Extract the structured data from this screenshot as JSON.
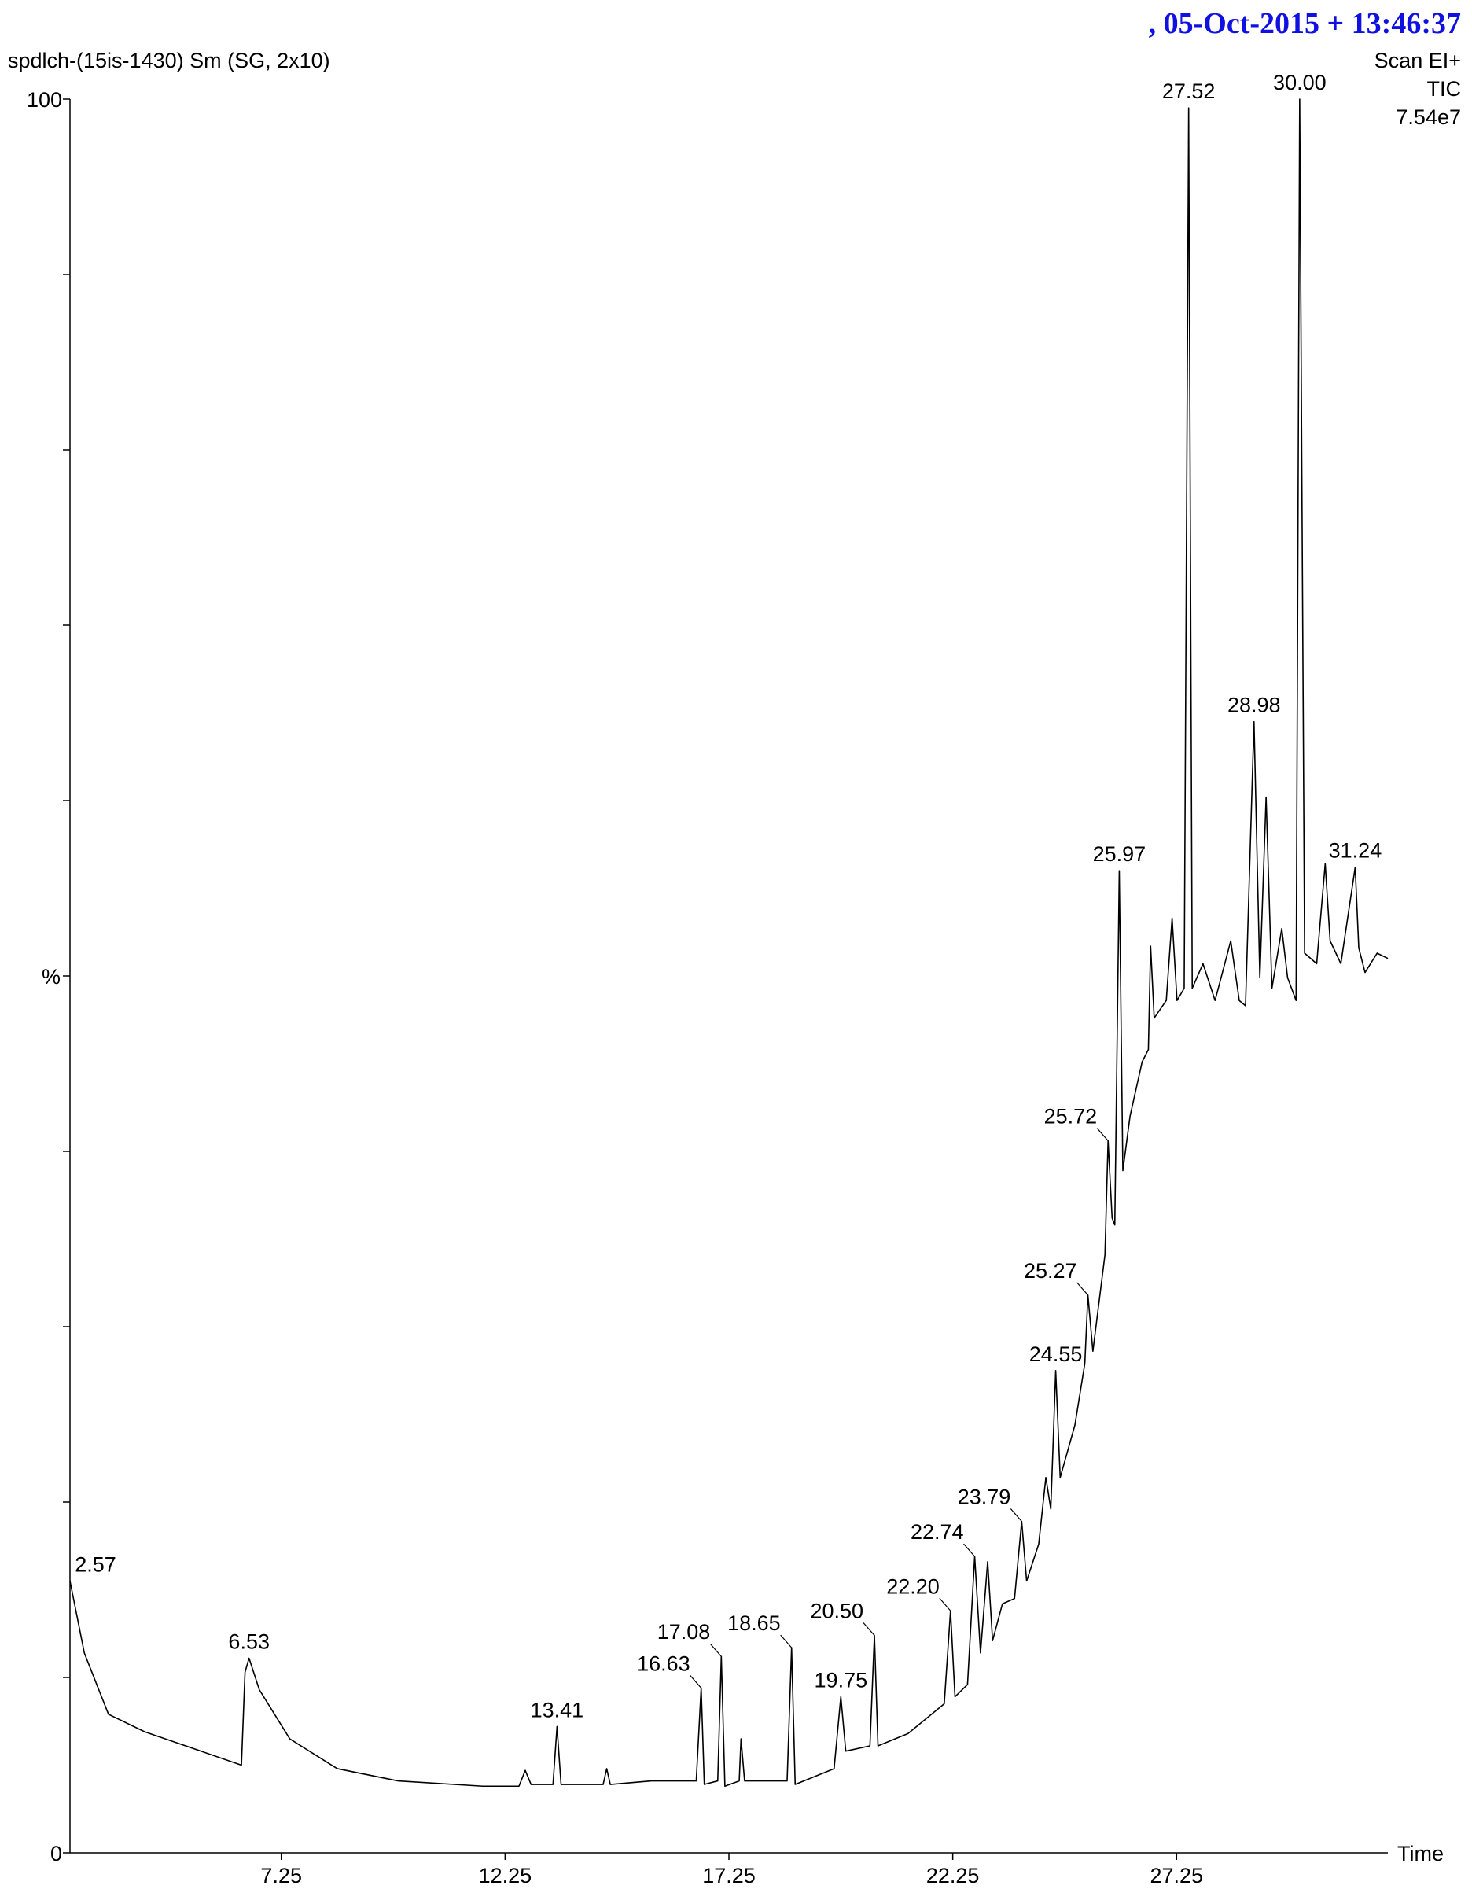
{
  "chart_data": {
    "type": "line",
    "title": "spdlch-(15is-1430) Sm (SG, 2x10)",
    "stamp": ",  05-Oct-2015 + 13:46:37",
    "info": [
      "Scan EI+",
      "TIC",
      "7.54e7"
    ],
    "y_label": "%",
    "x_label": "Time",
    "color": "#000000",
    "xlim": [
      2.53,
      31.97
    ],
    "ylim": [
      0,
      100
    ],
    "xticks": [
      7.25,
      12.25,
      17.25,
      22.25,
      27.25
    ],
    "yticks": [
      0,
      100
    ],
    "yminor_ticks": [
      10,
      20,
      30,
      40,
      50,
      60,
      70,
      80,
      90
    ],
    "x": [
      2.53,
      2.85,
      3.39,
      4.2,
      5.0,
      6.36,
      6.44,
      6.53,
      6.76,
      7.44,
      8.5,
      9.86,
      11.75,
      12.56,
      12.7,
      12.83,
      13.32,
      13.41,
      13.5,
      14.44,
      14.52,
      14.6,
      15.52,
      16.52,
      16.63,
      16.7,
      17.0,
      17.08,
      17.16,
      17.48,
      17.52,
      17.6,
      18.55,
      18.65,
      18.73,
      19.6,
      19.75,
      19.86,
      20.4,
      20.5,
      20.58,
      21.25,
      22.06,
      22.2,
      22.3,
      22.58,
      22.74,
      22.87,
      23.03,
      23.14,
      23.36,
      23.63,
      23.79,
      23.9,
      24.17,
      24.33,
      24.44,
      24.55,
      24.65,
      24.98,
      25.2,
      25.27,
      25.38,
      25.65,
      25.72,
      25.81,
      25.87,
      25.97,
      26.05,
      26.21,
      26.48,
      26.62,
      26.67,
      26.75,
      27.02,
      27.15,
      27.26,
      27.42,
      27.52,
      27.6,
      27.84,
      28.11,
      28.46,
      28.65,
      28.79,
      28.98,
      29.11,
      29.25,
      29.38,
      29.6,
      29.73,
      29.92,
      30.0,
      30.11,
      30.38,
      30.57,
      30.68,
      30.92,
      31.24,
      31.32,
      31.46,
      31.73,
      31.97
    ],
    "values": [
      15.5,
      11.4,
      7.9,
      6.9,
      6.2,
      5.0,
      10.3,
      11.1,
      9.3,
      6.5,
      4.8,
      4.1,
      3.8,
      3.8,
      4.7,
      3.9,
      3.9,
      7.2,
      3.9,
      3.9,
      4.8,
      3.9,
      4.1,
      4.1,
      9.4,
      3.9,
      4.1,
      11.2,
      3.8,
      4.1,
      6.5,
      4.1,
      4.1,
      11.7,
      3.9,
      4.8,
      8.9,
      5.8,
      6.1,
      12.4,
      6.1,
      6.8,
      8.5,
      13.8,
      8.9,
      9.6,
      16.9,
      11.4,
      16.6,
      12.1,
      14.2,
      14.5,
      18.9,
      15.5,
      17.6,
      21.4,
      19.6,
      27.5,
      21.4,
      24.4,
      27.9,
      31.8,
      28.6,
      34.1,
      40.6,
      36.2,
      35.8,
      56.0,
      38.9,
      42.0,
      45.1,
      45.8,
      51.7,
      47.6,
      48.6,
      53.3,
      48.6,
      49.3,
      99.5,
      49.3,
      50.7,
      48.6,
      52.0,
      48.6,
      48.3,
      64.5,
      49.9,
      60.2,
      49.3,
      52.7,
      49.9,
      48.6,
      100,
      51.3,
      50.7,
      56.4,
      52.0,
      50.7,
      56.2,
      51.6,
      50.2,
      51.3,
      51.0
    ],
    "annotations": [
      {
        "text": "2.57",
        "x": 2.57,
        "y": 15.5
      },
      {
        "text": "6.53",
        "x": 6.53,
        "y": 11.1
      },
      {
        "text": "13.41",
        "x": 13.41,
        "y": 7.2
      },
      {
        "text": "16.63",
        "x": 16.63,
        "y": 9.4
      },
      {
        "text": "17.08",
        "x": 17.08,
        "y": 11.2
      },
      {
        "text": "18.65",
        "x": 18.65,
        "y": 11.7
      },
      {
        "text": "19.75",
        "x": 19.75,
        "y": 8.9
      },
      {
        "text": "20.50",
        "x": 20.5,
        "y": 12.4
      },
      {
        "text": "22.20",
        "x": 22.2,
        "y": 13.8
      },
      {
        "text": "22.74",
        "x": 22.74,
        "y": 16.9
      },
      {
        "text": "23.79",
        "x": 23.79,
        "y": 18.9
      },
      {
        "text": "24.55",
        "x": 24.55,
        "y": 27.5
      },
      {
        "text": "25.27",
        "x": 25.27,
        "y": 31.8
      },
      {
        "text": "25.72",
        "x": 25.72,
        "y": 40.6
      },
      {
        "text": "25.97",
        "x": 25.97,
        "y": 56.0
      },
      {
        "text": "27.52",
        "x": 27.52,
        "y": 99.5
      },
      {
        "text": "28.98",
        "x": 28.98,
        "y": 64.5
      },
      {
        "text": "30.00",
        "x": 30.0,
        "y": 100
      },
      {
        "text": "31.24",
        "x": 31.24,
        "y": 56.2
      }
    ]
  }
}
